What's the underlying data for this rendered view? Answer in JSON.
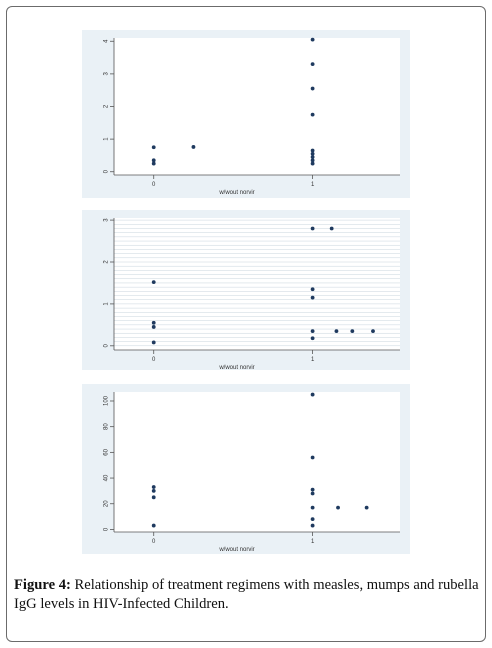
{
  "chart_data": [
    {
      "type": "scatter",
      "xlabel": "w/wout norvir",
      "ylabel": "",
      "xlim": [
        -0.25,
        1.55
      ],
      "ylim": [
        -0.1,
        4.1
      ],
      "xticks": [
        "0",
        "1"
      ],
      "yticks": [
        "0",
        "1",
        "2",
        "3",
        "4"
      ],
      "grid": false,
      "points": [
        {
          "x": 0,
          "y": 0.75
        },
        {
          "x": 0,
          "y": 0.35
        },
        {
          "x": 0,
          "y": 0.25
        },
        {
          "x": 0.25,
          "y": 0.76
        },
        {
          "x": 1,
          "y": 4.05
        },
        {
          "x": 1,
          "y": 3.3
        },
        {
          "x": 1,
          "y": 2.55
        },
        {
          "x": 1,
          "y": 1.75
        },
        {
          "x": 1,
          "y": 0.65
        },
        {
          "x": 1,
          "y": 0.55
        },
        {
          "x": 1,
          "y": 0.45
        },
        {
          "x": 1,
          "y": 0.35
        },
        {
          "x": 1,
          "y": 0.25
        }
      ]
    },
    {
      "type": "scatter",
      "xlabel": "w/wout norvir",
      "ylabel": "",
      "xlim": [
        -0.25,
        1.55
      ],
      "ylim": [
        -0.1,
        3.05
      ],
      "xticks": [
        "0",
        "1"
      ],
      "yticks": [
        "0",
        "1",
        "2",
        "3"
      ],
      "grid": true,
      "points": [
        {
          "x": 0,
          "y": 1.52
        },
        {
          "x": 0,
          "y": 0.55
        },
        {
          "x": 0,
          "y": 0.45
        },
        {
          "x": 0,
          "y": 0.08
        },
        {
          "x": 1,
          "y": 2.8
        },
        {
          "x": 1.12,
          "y": 2.8
        },
        {
          "x": 1,
          "y": 1.35
        },
        {
          "x": 1,
          "y": 1.15
        },
        {
          "x": 1,
          "y": 0.35
        },
        {
          "x": 1,
          "y": 0.18
        },
        {
          "x": 1.15,
          "y": 0.35
        },
        {
          "x": 1.25,
          "y": 0.35
        },
        {
          "x": 1.38,
          "y": 0.35
        }
      ]
    },
    {
      "type": "scatter",
      "xlabel": "w/wout norvir",
      "ylabel": "",
      "xlim": [
        -0.25,
        1.55
      ],
      "ylim": [
        -2,
        107
      ],
      "xticks": [
        "0",
        "1"
      ],
      "yticks": [
        "0",
        "20",
        "40",
        "60",
        "80",
        "100"
      ],
      "grid": false,
      "points": [
        {
          "x": 0,
          "y": 33
        },
        {
          "x": 0,
          "y": 30
        },
        {
          "x": 0,
          "y": 25
        },
        {
          "x": 0,
          "y": 3
        },
        {
          "x": 1,
          "y": 105
        },
        {
          "x": 1,
          "y": 56
        },
        {
          "x": 1,
          "y": 31
        },
        {
          "x": 1,
          "y": 28
        },
        {
          "x": 1,
          "y": 17
        },
        {
          "x": 1,
          "y": 8
        },
        {
          "x": 1,
          "y": 3
        },
        {
          "x": 1.16,
          "y": 17
        },
        {
          "x": 1.34,
          "y": 17
        }
      ]
    }
  ],
  "caption": {
    "label": "Figure 4:",
    "text": " Relationship of treatment regimens with measles, mumps and rubella IgG levels in HIV-Infected Children."
  },
  "colors": {
    "plot_bg": "#eaf1f6",
    "marker": "#1f3a5f",
    "grid": "#c8d4dd"
  }
}
